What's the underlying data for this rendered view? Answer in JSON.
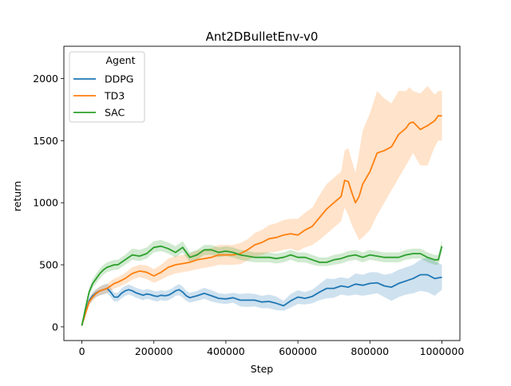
{
  "chart_data": {
    "type": "line",
    "title": "Ant2DBulletEnv-v0",
    "xlabel": "Step",
    "ylabel": "return",
    "xlim": [
      -50000,
      1050000
    ],
    "ylim": [
      -110,
      2260
    ],
    "x_ticks": [
      0,
      200000,
      400000,
      600000,
      800000,
      1000000
    ],
    "x_tick_labels": [
      "0",
      "200000",
      "400000",
      "600000",
      "800000",
      "1000000"
    ],
    "y_ticks": [
      0,
      500,
      1000,
      1500,
      2000
    ],
    "y_tick_labels": [
      "0",
      "500",
      "1000",
      "1500",
      "2000"
    ],
    "grid": false,
    "legend": {
      "title": "Agent",
      "placement": "top-left"
    },
    "colors": {
      "DDPG": "#1f77b4",
      "TD3": "#ff7f0e",
      "SAC": "#2ca02c"
    },
    "series": [
      {
        "name": "DDPG",
        "color": "#1f77b4",
        "x": [
          0,
          10000,
          20000,
          30000,
          40000,
          50000,
          60000,
          70000,
          80000,
          90000,
          100000,
          110000,
          120000,
          130000,
          140000,
          150000,
          160000,
          170000,
          180000,
          190000,
          200000,
          210000,
          220000,
          230000,
          240000,
          250000,
          260000,
          270000,
          280000,
          290000,
          300000,
          320000,
          340000,
          360000,
          380000,
          400000,
          420000,
          440000,
          460000,
          480000,
          500000,
          520000,
          540000,
          560000,
          580000,
          600000,
          620000,
          640000,
          660000,
          680000,
          700000,
          720000,
          740000,
          760000,
          780000,
          800000,
          820000,
          840000,
          860000,
          880000,
          900000,
          920000,
          940000,
          960000,
          980000,
          1000000
        ],
        "y": [
          10,
          120,
          210,
          250,
          275,
          290,
          300,
          310,
          280,
          240,
          240,
          270,
          290,
          300,
          290,
          275,
          265,
          255,
          265,
          260,
          250,
          245,
          255,
          250,
          255,
          270,
          290,
          300,
          280,
          250,
          235,
          250,
          270,
          250,
          230,
          225,
          235,
          215,
          215,
          215,
          200,
          205,
          190,
          170,
          210,
          240,
          230,
          245,
          280,
          310,
          310,
          330,
          320,
          345,
          335,
          350,
          355,
          330,
          320,
          350,
          370,
          390,
          420,
          420,
          390,
          400
        ],
        "lower": [
          5,
          100,
          180,
          220,
          240,
          255,
          260,
          270,
          240,
          205,
          205,
          230,
          250,
          260,
          250,
          235,
          225,
          215,
          225,
          220,
          210,
          205,
          215,
          210,
          215,
          230,
          250,
          255,
          235,
          210,
          195,
          210,
          225,
          205,
          190,
          185,
          195,
          165,
          160,
          165,
          150,
          150,
          135,
          130,
          155,
          185,
          180,
          190,
          215,
          230,
          235,
          260,
          250,
          260,
          250,
          260,
          270,
          240,
          210,
          240,
          260,
          270,
          290,
          280,
          250,
          300
        ],
        "upper": [
          15,
          140,
          240,
          280,
          305,
          325,
          340,
          350,
          320,
          275,
          275,
          310,
          330,
          340,
          330,
          315,
          305,
          295,
          305,
          300,
          290,
          285,
          295,
          290,
          295,
          310,
          330,
          345,
          325,
          290,
          275,
          290,
          315,
          295,
          270,
          265,
          275,
          265,
          270,
          265,
          250,
          260,
          245,
          210,
          265,
          295,
          280,
          300,
          345,
          390,
          385,
          400,
          390,
          430,
          420,
          440,
          440,
          420,
          430,
          460,
          480,
          500,
          540,
          560,
          530,
          500
        ]
      },
      {
        "name": "TD3",
        "color": "#ff7f0e",
        "x": [
          0,
          10000,
          20000,
          30000,
          40000,
          50000,
          60000,
          70000,
          80000,
          90000,
          100000,
          120000,
          140000,
          160000,
          180000,
          200000,
          220000,
          240000,
          260000,
          280000,
          300000,
          320000,
          340000,
          360000,
          380000,
          400000,
          420000,
          440000,
          460000,
          480000,
          500000,
          520000,
          540000,
          560000,
          580000,
          600000,
          620000,
          640000,
          660000,
          680000,
          700000,
          720000,
          730000,
          740000,
          750000,
          760000,
          770000,
          780000,
          800000,
          820000,
          840000,
          860000,
          880000,
          900000,
          910000,
          920000,
          940000,
          960000,
          980000,
          990000,
          1000000
        ],
        "y": [
          10,
          110,
          200,
          240,
          270,
          290,
          300,
          310,
          330,
          350,
          360,
          390,
          430,
          450,
          440,
          410,
          440,
          480,
          500,
          510,
          520,
          540,
          550,
          560,
          580,
          580,
          580,
          590,
          620,
          660,
          680,
          710,
          720,
          740,
          750,
          740,
          780,
          810,
          880,
          950,
          1000,
          1050,
          1180,
          1170,
          1080,
          1000,
          1050,
          1150,
          1250,
          1400,
          1420,
          1450,
          1550,
          1600,
          1640,
          1650,
          1590,
          1620,
          1660,
          1700,
          1700
        ],
        "lower": [
          5,
          90,
          170,
          210,
          240,
          255,
          265,
          275,
          290,
          310,
          320,
          345,
          380,
          400,
          385,
          355,
          380,
          410,
          430,
          440,
          450,
          465,
          475,
          485,
          500,
          500,
          500,
          505,
          535,
          565,
          580,
          600,
          605,
          620,
          630,
          610,
          640,
          660,
          700,
          750,
          800,
          850,
          960,
          900,
          820,
          760,
          700,
          720,
          780,
          900,
          1000,
          1100,
          1200,
          1300,
          1350,
          1400,
          1300,
          1300,
          1450,
          1500,
          1500
        ],
        "upper": [
          15,
          130,
          230,
          270,
          300,
          325,
          335,
          345,
          370,
          390,
          400,
          435,
          480,
          500,
          495,
          465,
          500,
          550,
          570,
          580,
          590,
          615,
          625,
          635,
          660,
          660,
          660,
          675,
          705,
          755,
          780,
          820,
          835,
          860,
          870,
          870,
          920,
          960,
          1060,
          1150,
          1200,
          1250,
          1420,
          1440,
          1340,
          1240,
          1400,
          1580,
          1720,
          1900,
          1840,
          1800,
          1900,
          1900,
          1930,
          1900,
          1880,
          1940,
          1870,
          1900,
          1900
        ]
      },
      {
        "name": "SAC",
        "color": "#2ca02c",
        "x": [
          0,
          10000,
          20000,
          30000,
          40000,
          50000,
          60000,
          70000,
          80000,
          90000,
          100000,
          120000,
          140000,
          160000,
          180000,
          200000,
          220000,
          240000,
          260000,
          280000,
          300000,
          320000,
          340000,
          360000,
          380000,
          400000,
          420000,
          440000,
          460000,
          480000,
          500000,
          520000,
          540000,
          560000,
          580000,
          600000,
          620000,
          640000,
          660000,
          680000,
          700000,
          720000,
          740000,
          760000,
          780000,
          800000,
          820000,
          840000,
          860000,
          880000,
          900000,
          920000,
          940000,
          960000,
          980000,
          990000,
          1000000
        ],
        "y": [
          10,
          150,
          280,
          350,
          390,
          430,
          460,
          480,
          490,
          500,
          500,
          540,
          580,
          570,
          590,
          640,
          650,
          630,
          600,
          640,
          560,
          580,
          620,
          620,
          600,
          610,
          600,
          580,
          570,
          560,
          560,
          560,
          550,
          560,
          580,
          560,
          560,
          540,
          520,
          520,
          540,
          550,
          570,
          580,
          560,
          580,
          570,
          560,
          560,
          560,
          580,
          590,
          590,
          560,
          540,
          540,
          650
        ],
        "lower": [
          5,
          130,
          250,
          315,
          350,
          390,
          420,
          440,
          450,
          460,
          460,
          500,
          540,
          530,
          550,
          600,
          610,
          590,
          560,
          600,
          520,
          540,
          580,
          580,
          560,
          570,
          560,
          540,
          530,
          520,
          520,
          520,
          510,
          520,
          540,
          520,
          520,
          500,
          490,
          490,
          500,
          510,
          530,
          540,
          520,
          540,
          530,
          520,
          520,
          520,
          540,
          550,
          550,
          520,
          500,
          500,
          600
        ],
        "upper": [
          15,
          170,
          310,
          385,
          430,
          470,
          500,
          520,
          530,
          540,
          540,
          580,
          630,
          620,
          640,
          690,
          700,
          680,
          650,
          690,
          600,
          620,
          660,
          660,
          640,
          650,
          640,
          620,
          610,
          600,
          600,
          600,
          590,
          600,
          620,
          600,
          600,
          580,
          560,
          560,
          580,
          590,
          610,
          620,
          600,
          620,
          610,
          600,
          600,
          600,
          620,
          630,
          630,
          600,
          580,
          580,
          700
        ]
      }
    ]
  }
}
